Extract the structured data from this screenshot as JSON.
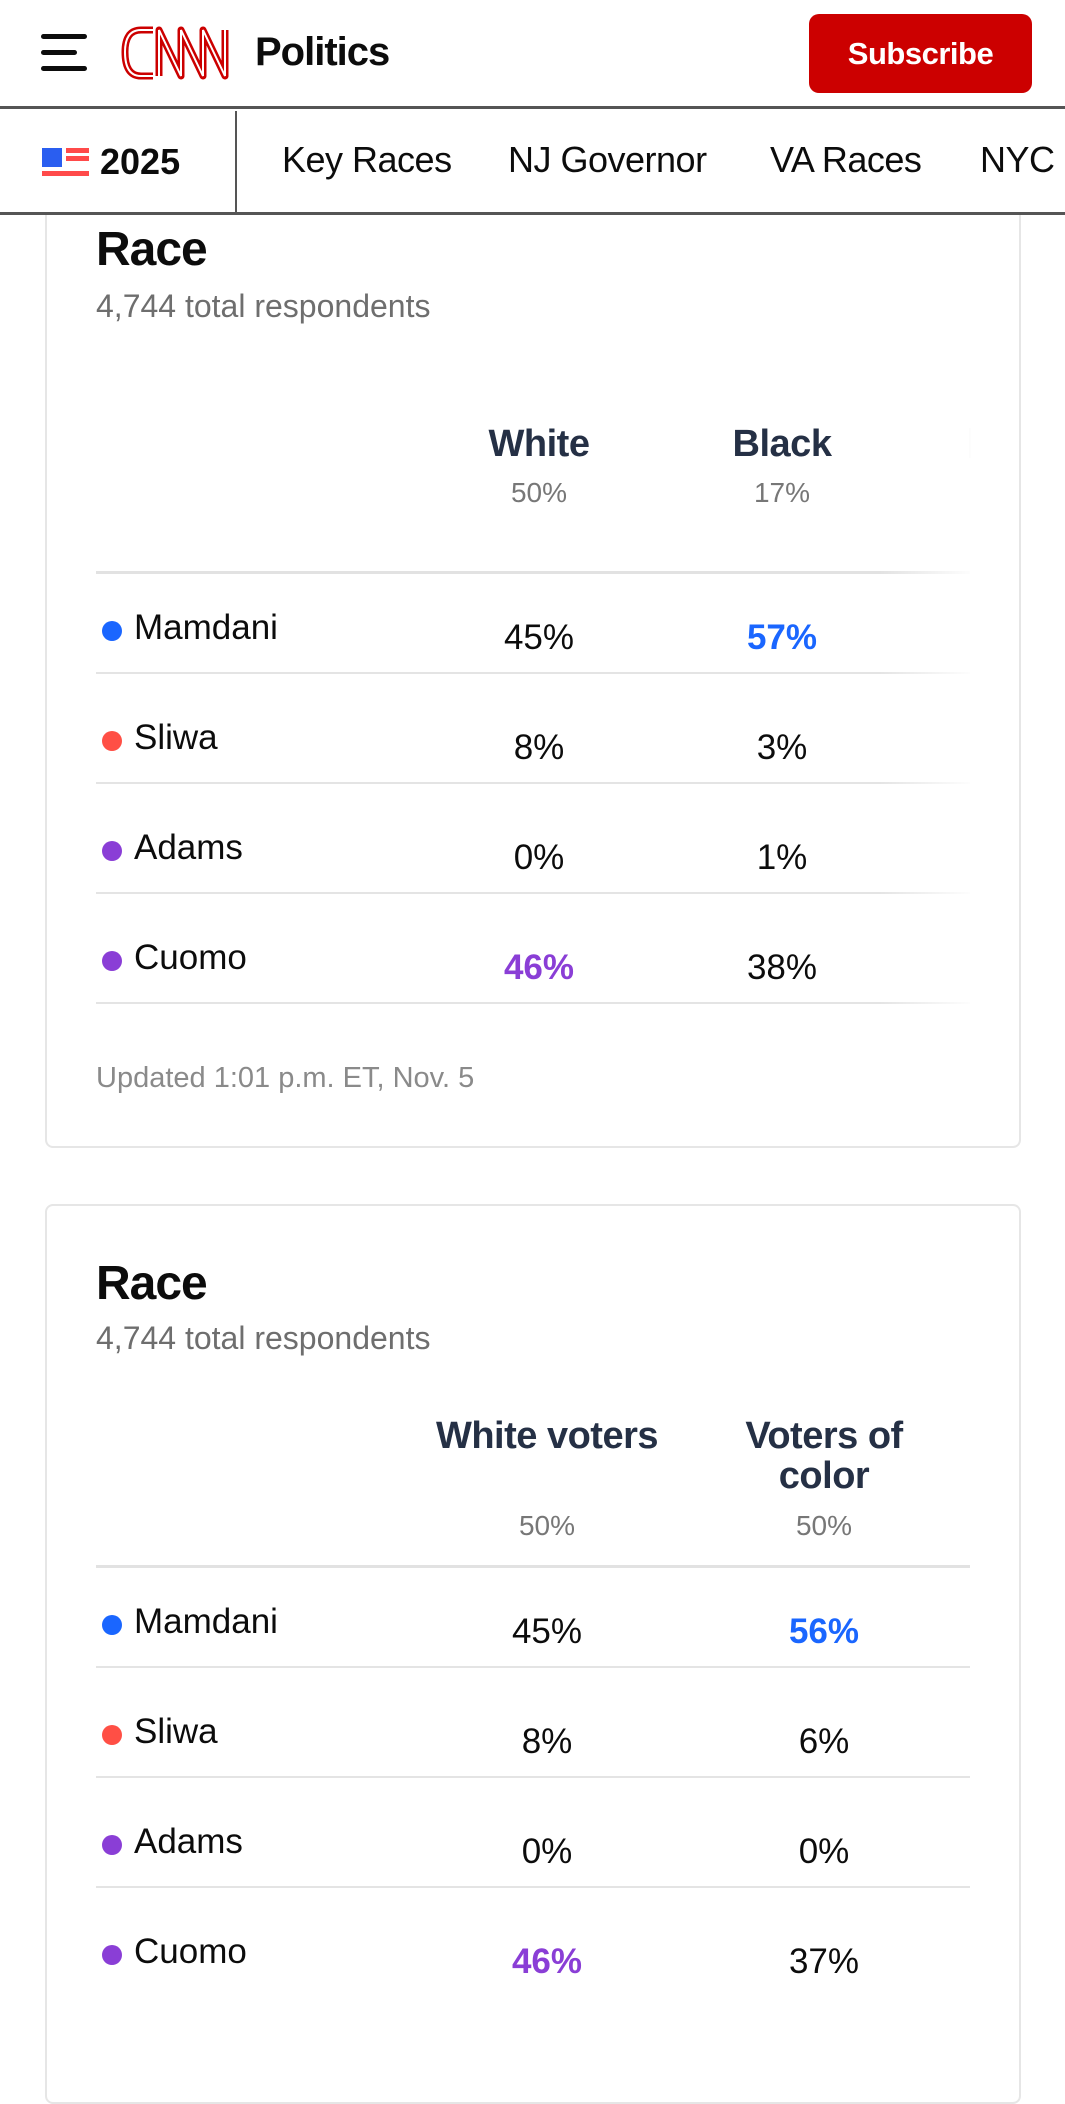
{
  "header": {
    "logo": "CNN",
    "section": "Politics",
    "subscribe_label": "Subscribe"
  },
  "nav": {
    "year": "2025",
    "items": [
      "Key Races",
      "NJ Governor",
      "VA Races",
      "NYC"
    ]
  },
  "colors": {
    "mamdani": "#1a66ff",
    "sliwa": "#ff4f45",
    "adams": "#8a3ed6",
    "cuomo": "#8a3ed6",
    "brand": "#cc0000"
  },
  "cards": [
    {
      "title": "Race",
      "subtitle": "4,744 total respondents",
      "columns": [
        {
          "label": "White",
          "share": "50%"
        },
        {
          "label": "Black",
          "share": "17%"
        }
      ],
      "rows": [
        {
          "name": "Mamdani",
          "values": [
            "45%",
            "57%"
          ],
          "winner_col": 1
        },
        {
          "name": "Sliwa",
          "values": [
            "8%",
            "3%"
          ]
        },
        {
          "name": "Adams",
          "values": [
            "0%",
            "1%"
          ]
        },
        {
          "name": "Cuomo",
          "values": [
            "46%",
            "38%"
          ],
          "winner_col": 0
        }
      ],
      "updated": "Updated 1:01 p.m. ET, Nov. 5"
    },
    {
      "title": "Race",
      "subtitle": "4,744 total respondents",
      "columns": [
        {
          "label": "White voters",
          "share": "50%"
        },
        {
          "label": "Voters of color",
          "share": "50%"
        }
      ],
      "rows": [
        {
          "name": "Mamdani",
          "values": [
            "45%",
            "56%"
          ],
          "winner_col": 1
        },
        {
          "name": "Sliwa",
          "values": [
            "8%",
            "6%"
          ]
        },
        {
          "name": "Adams",
          "values": [
            "0%",
            "0%"
          ]
        },
        {
          "name": "Cuomo",
          "values": [
            "46%",
            "37%"
          ],
          "winner_col": 0
        }
      ]
    }
  ]
}
